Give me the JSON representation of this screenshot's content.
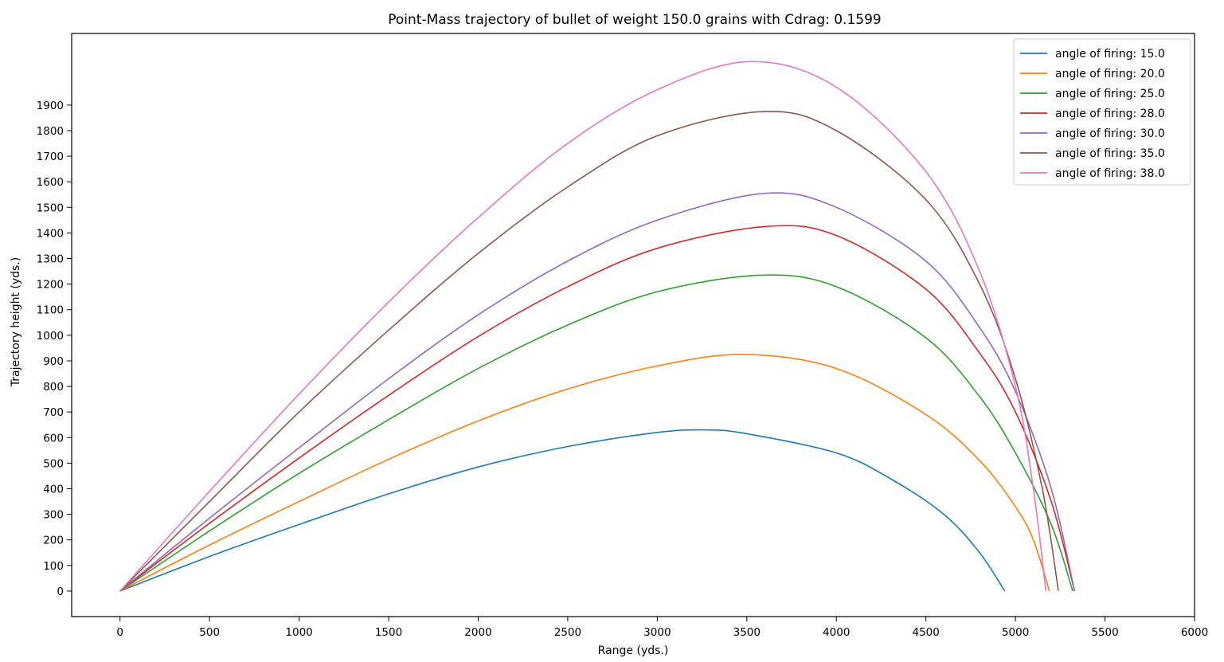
{
  "chart_data": {
    "type": "line",
    "title": "Point-Mass trajectory of bullet of weight 150.0 grains with Cdrag: 0.1599",
    "xlabel": "Range (yds.)",
    "ylabel": "Trajectory height (yds.)",
    "xlim": [
      -270,
      6000
    ],
    "ylim": [
      -100,
      2180
    ],
    "x_ticks": [
      0,
      500,
      1000,
      1500,
      2000,
      2500,
      3000,
      3500,
      4000,
      4500,
      5000,
      5500,
      6000
    ],
    "y_ticks": [
      0,
      100,
      200,
      300,
      400,
      500,
      600,
      700,
      800,
      900,
      1000,
      1100,
      1200,
      1300,
      1400,
      1500,
      1600,
      1700,
      1800,
      1900
    ],
    "grid": false,
    "legend_position": "top-right",
    "series": [
      {
        "name": "angle of firing: 15.0",
        "color": "#1f77b4",
        "x": [
          0,
          500,
          1000,
          1500,
          2000,
          2500,
          3000,
          3270,
          3500,
          4000,
          4300,
          4600,
          4800,
          4940
        ],
        "y": [
          0,
          135,
          260,
          380,
          485,
          565,
          620,
          630,
          615,
          540,
          440,
          300,
          150,
          0
        ]
      },
      {
        "name": "angle of firing: 20.0",
        "color": "#ff7f0e",
        "x": [
          0,
          500,
          1000,
          1500,
          2000,
          2500,
          3000,
          3480,
          4000,
          4500,
          4800,
          5000,
          5100,
          5190
        ],
        "y": [
          0,
          180,
          350,
          515,
          665,
          790,
          880,
          925,
          870,
          690,
          510,
          330,
          200,
          0
        ]
      },
      {
        "name": "angle of firing: 25.0",
        "color": "#2ca02c",
        "x": [
          0,
          500,
          1000,
          1500,
          2000,
          2500,
          3000,
          3580,
          4000,
          4500,
          4800,
          5000,
          5200,
          5320
        ],
        "y": [
          0,
          235,
          460,
          670,
          870,
          1040,
          1170,
          1235,
          1190,
          990,
          760,
          540,
          260,
          0
        ]
      },
      {
        "name": "angle of firing: 28.0",
        "color": "#d62728",
        "x": [
          0,
          500,
          1000,
          1500,
          2000,
          2500,
          3000,
          3600,
          4000,
          4500,
          4800,
          5000,
          5200,
          5330
        ],
        "y": [
          0,
          265,
          520,
          765,
          995,
          1190,
          1340,
          1425,
          1390,
          1180,
          930,
          700,
          350,
          0
        ]
      },
      {
        "name": "angle of firing: 30.0",
        "color": "#9467bd",
        "x": [
          0,
          500,
          1000,
          1500,
          2000,
          2500,
          3000,
          3600,
          4000,
          4500,
          4800,
          5000,
          5200,
          5330
        ],
        "y": [
          0,
          285,
          560,
          830,
          1080,
          1290,
          1450,
          1555,
          1500,
          1290,
          1030,
          780,
          400,
          0
        ]
      },
      {
        "name": "angle of firing: 35.0",
        "color": "#8c564b",
        "x": [
          0,
          500,
          1000,
          1500,
          2000,
          2500,
          3000,
          3600,
          4000,
          4500,
          4800,
          5000,
          5150,
          5240
        ],
        "y": [
          0,
          350,
          700,
          1020,
          1320,
          1580,
          1780,
          1875,
          1800,
          1530,
          1200,
          830,
          400,
          0
        ]
      },
      {
        "name": "angle of firing: 38.0",
        "color": "#e377c2",
        "x": [
          0,
          500,
          1000,
          1500,
          2000,
          2500,
          3000,
          3520,
          4000,
          4500,
          4800,
          5000,
          5100,
          5170
        ],
        "y": [
          0,
          390,
          770,
          1130,
          1460,
          1750,
          1960,
          2070,
          1970,
          1640,
          1250,
          800,
          400,
          0
        ]
      }
    ]
  }
}
